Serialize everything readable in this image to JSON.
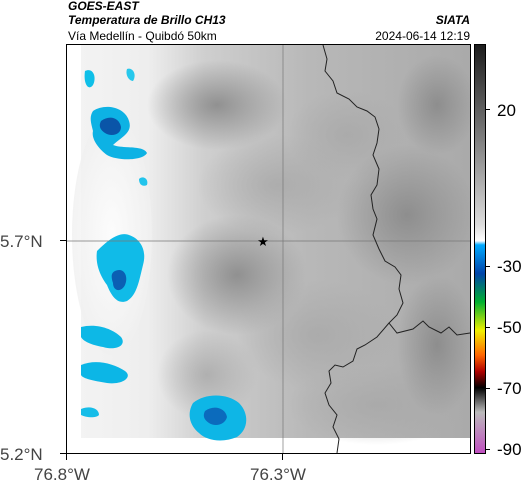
{
  "header": {
    "satellite": "GOES-EAST",
    "product": "Temperatura de Brillo CH13",
    "region": "Vía Medellín - Quibdó 50km",
    "agency": "SIATA",
    "datetime": "2024-06-14 12:19"
  },
  "axes": {
    "y_ticks": [
      "5.7°N",
      "5.2°N"
    ],
    "x_ticks": [
      "76.8°W",
      "76.3°W"
    ]
  },
  "map": {
    "marker_icon": "star-icon",
    "gridlines": true,
    "land_color": "#c8c8c8",
    "cold_cloud_color": "#00b8e6",
    "warm_edge_color": "#f2f2f2"
  },
  "colorbar": {
    "labels": [
      "20",
      "-30",
      "-50",
      "-70",
      "-90"
    ],
    "colors": [
      "#1c1c1c",
      "#7a7a7a",
      "#dcdcdc",
      "#00aaff",
      "#0044aa",
      "#00b030",
      "#f0f000",
      "#ff6600",
      "#b00000",
      "#000000",
      "#bbbbbb",
      "#c050c0"
    ]
  }
}
